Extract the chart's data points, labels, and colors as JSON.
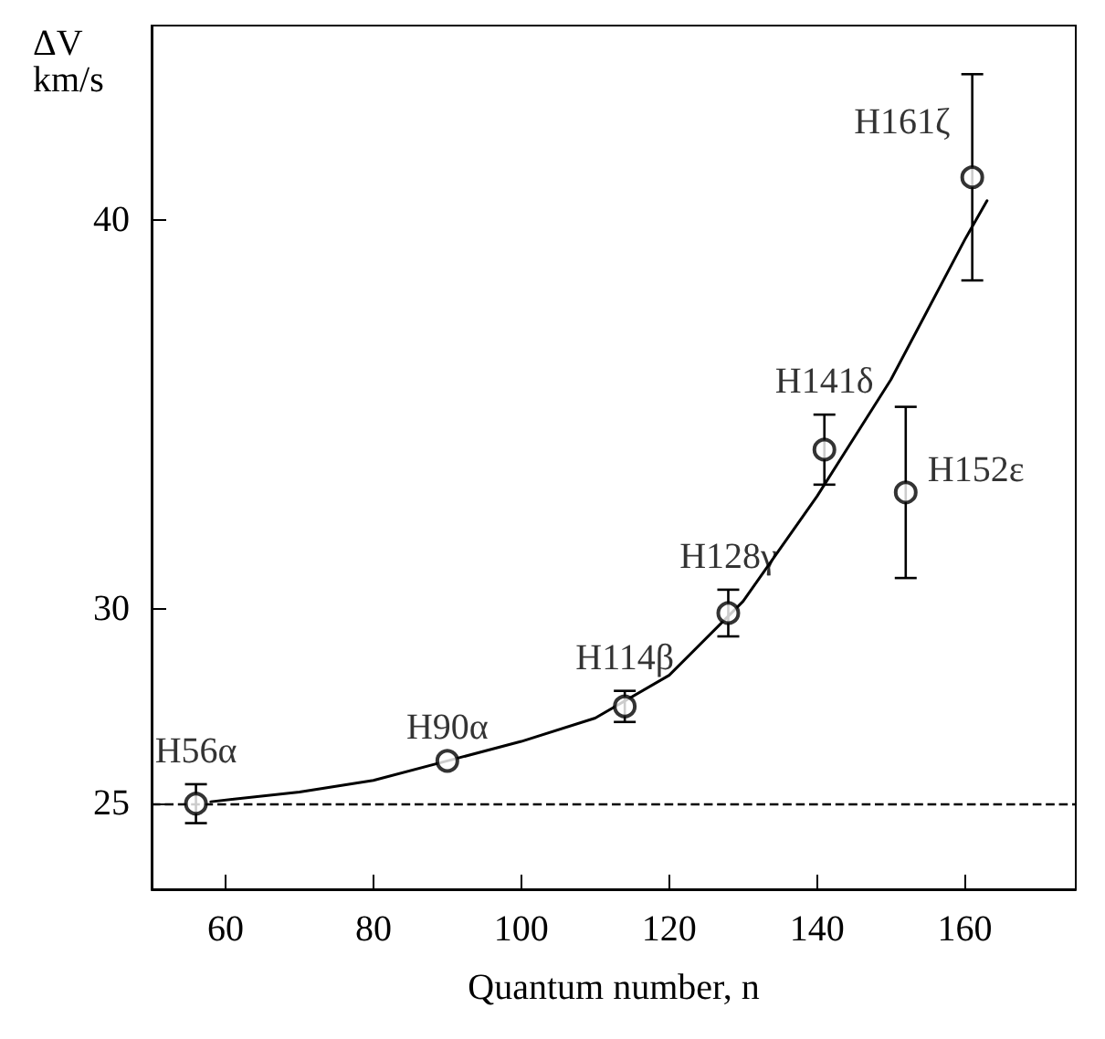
{
  "chart_data": {
    "type": "scatter",
    "xlabel": "Quantum number, n",
    "ylabel": "ΔV\nkm/s",
    "xlim": [
      50,
      175
    ],
    "xticks": [
      60,
      80,
      100,
      120,
      140,
      160
    ],
    "ylim": [
      22.8,
      45
    ],
    "yticks": [
      25,
      30,
      40
    ],
    "marker": "circle",
    "grid": false,
    "series": [
      {
        "color": "#000000",
        "x": [
          56,
          90,
          114,
          128,
          141,
          152,
          161
        ],
        "values": [
          25.0,
          26.1,
          27.5,
          29.9,
          34.1,
          33.0,
          41.1
        ],
        "errors": [
          0.5,
          null,
          0.4,
          0.6,
          0.9,
          2.2,
          2.65
        ]
      },
      {
        "type": "line",
        "color": "#000000",
        "marker": "none",
        "x": [
          58,
          70,
          80,
          90,
          100,
          110,
          120,
          130,
          140,
          150,
          160,
          163
        ],
        "values": [
          25.05,
          25.3,
          25.6,
          26.1,
          26.6,
          27.2,
          28.3,
          30.2,
          32.9,
          35.9,
          39.5,
          40.5
        ]
      }
    ],
    "ref_lines": [
      {
        "axis": "y",
        "value": 25,
        "line_style": "dashed",
        "color": "#000000"
      }
    ],
    "annotations": [
      {
        "text": "H56α",
        "x": 56,
        "y": 25.0
      },
      {
        "text": "H90α",
        "x": 90,
        "y": 26.1
      },
      {
        "text": "H114β",
        "x": 114,
        "y": 27.5
      },
      {
        "text": "H128γ",
        "x": 128,
        "y": 29.9
      },
      {
        "text": "H141δ",
        "x": 141,
        "y": 34.1
      },
      {
        "text": "H152ε",
        "x": 152,
        "y": 33.0
      },
      {
        "text": "H161ζ",
        "x": 161,
        "y": 41.1
      }
    ]
  }
}
